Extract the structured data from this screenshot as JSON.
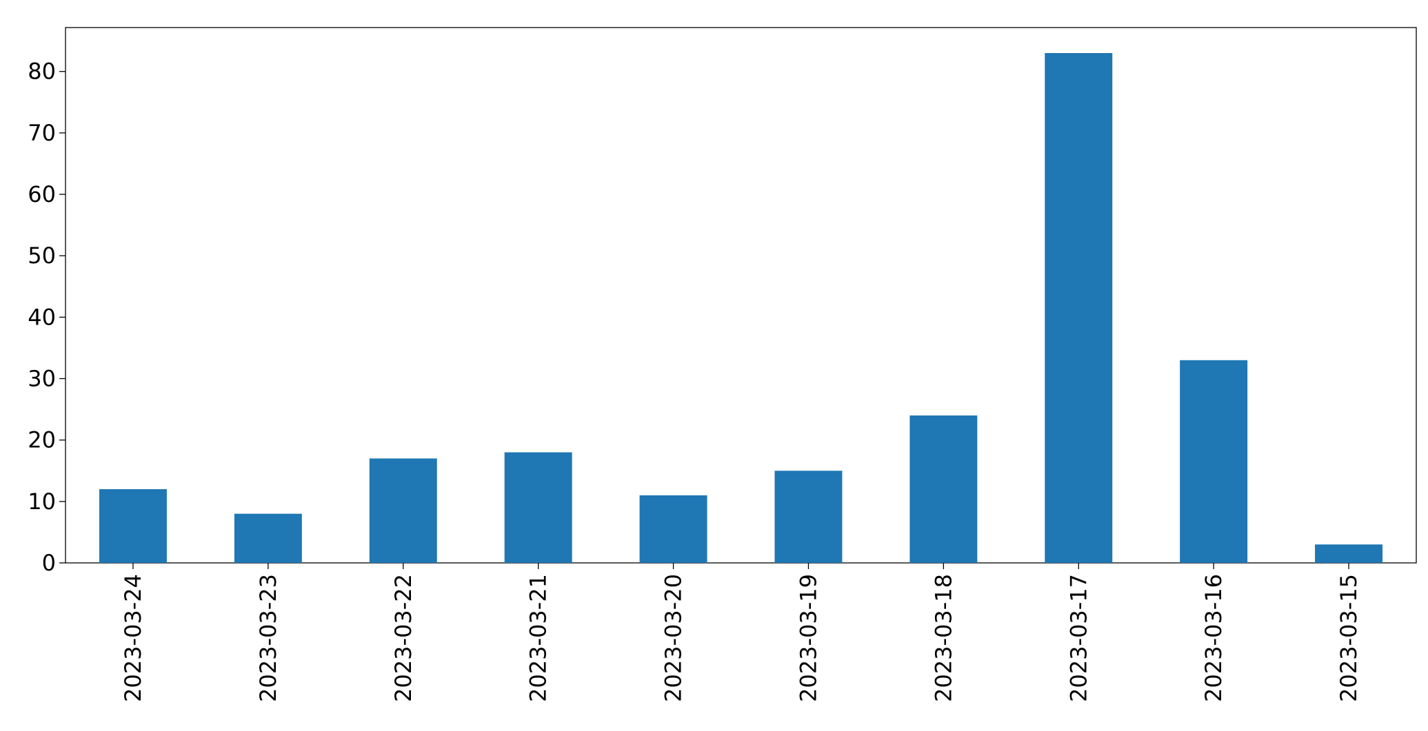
{
  "chart_data": {
    "type": "bar",
    "categories": [
      "2023-03-24",
      "2023-03-23",
      "2023-03-22",
      "2023-03-21",
      "2023-03-20",
      "2023-03-19",
      "2023-03-18",
      "2023-03-17",
      "2023-03-16",
      "2023-03-15"
    ],
    "values": [
      12,
      8,
      17,
      18,
      11,
      15,
      24,
      83,
      33,
      3
    ],
    "color": "#1f77b4",
    "ylim": [
      0,
      87.15
    ],
    "yticks": [
      0,
      10,
      20,
      30,
      40,
      50,
      60,
      70,
      80
    ],
    "grid": false
  }
}
